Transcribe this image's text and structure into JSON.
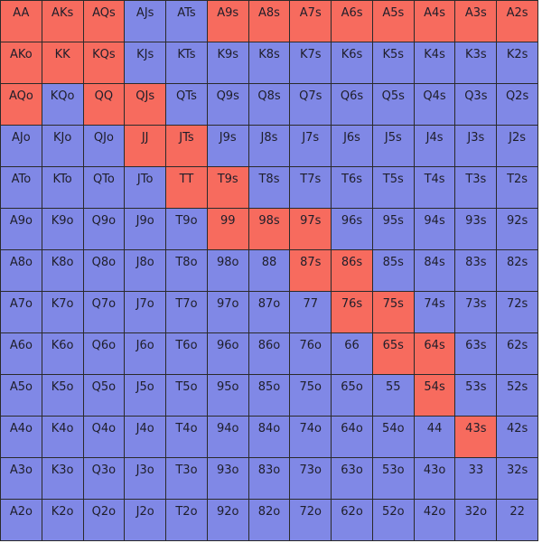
{
  "colors": {
    "selected": "#f76b5e",
    "unselected": "#8088e6"
  },
  "grid": [
    [
      "AA",
      "AKs",
      "AQs",
      "AJs",
      "ATs",
      "A9s",
      "A8s",
      "A7s",
      "A6s",
      "A5s",
      "A4s",
      "A3s",
      "A2s"
    ],
    [
      "AKo",
      "KK",
      "KQs",
      "KJs",
      "KTs",
      "K9s",
      "K8s",
      "K7s",
      "K6s",
      "K5s",
      "K4s",
      "K3s",
      "K2s"
    ],
    [
      "AQo",
      "KQo",
      "QQ",
      "QJs",
      "QTs",
      "Q9s",
      "Q8s",
      "Q7s",
      "Q6s",
      "Q5s",
      "Q4s",
      "Q3s",
      "Q2s"
    ],
    [
      "AJo",
      "KJo",
      "QJo",
      "JJ",
      "JTs",
      "J9s",
      "J8s",
      "J7s",
      "J6s",
      "J5s",
      "J4s",
      "J3s",
      "J2s"
    ],
    [
      "ATo",
      "KTo",
      "QTo",
      "JTo",
      "TT",
      "T9s",
      "T8s",
      "T7s",
      "T6s",
      "T5s",
      "T4s",
      "T3s",
      "T2s"
    ],
    [
      "A9o",
      "K9o",
      "Q9o",
      "J9o",
      "T9o",
      "99",
      "98s",
      "97s",
      "96s",
      "95s",
      "94s",
      "93s",
      "92s"
    ],
    [
      "A8o",
      "K8o",
      "Q8o",
      "J8o",
      "T8o",
      "98o",
      "88",
      "87s",
      "86s",
      "85s",
      "84s",
      "83s",
      "82s"
    ],
    [
      "A7o",
      "K7o",
      "Q7o",
      "J7o",
      "T7o",
      "97o",
      "87o",
      "77",
      "76s",
      "75s",
      "74s",
      "73s",
      "72s"
    ],
    [
      "A6o",
      "K6o",
      "Q6o",
      "J6o",
      "T6o",
      "96o",
      "86o",
      "76o",
      "66",
      "65s",
      "64s",
      "63s",
      "62s"
    ],
    [
      "A5o",
      "K5o",
      "Q5o",
      "J5o",
      "T5o",
      "95o",
      "85o",
      "75o",
      "65o",
      "55",
      "54s",
      "53s",
      "52s"
    ],
    [
      "A4o",
      "K4o",
      "Q4o",
      "J4o",
      "T4o",
      "94o",
      "84o",
      "74o",
      "64o",
      "54o",
      "44",
      "43s",
      "42s"
    ],
    [
      "A3o",
      "K3o",
      "Q3o",
      "J3o",
      "T3o",
      "93o",
      "83o",
      "73o",
      "63o",
      "53o",
      "43o",
      "33",
      "32s"
    ],
    [
      "A2o",
      "K2o",
      "Q2o",
      "J2o",
      "T2o",
      "92o",
      "82o",
      "72o",
      "62o",
      "52o",
      "42o",
      "32o",
      "22"
    ]
  ],
  "selected": [
    "AA",
    "AKs",
    "AQs",
    "A9s",
    "A8s",
    "A7s",
    "A6s",
    "A5s",
    "A4s",
    "A3s",
    "A2s",
    "AKo",
    "KK",
    "KQs",
    "AQo",
    "QQ",
    "QJs",
    "JJ",
    "JTs",
    "TT",
    "T9s",
    "99",
    "98s",
    "97s",
    "87s",
    "86s",
    "76s",
    "75s",
    "65s",
    "64s",
    "54s",
    "43s"
  ]
}
